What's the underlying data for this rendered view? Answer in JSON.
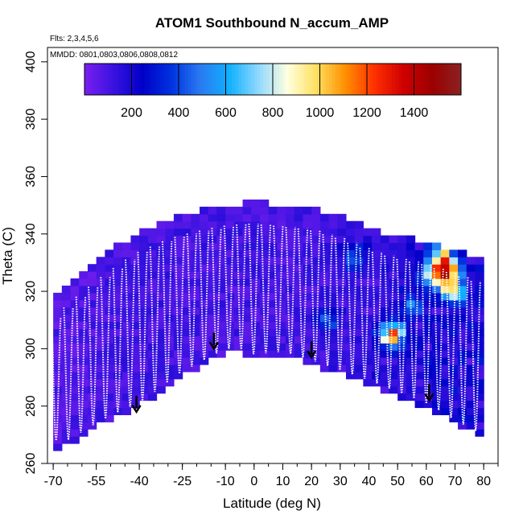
{
  "chart_data": {
    "type": "heatmap",
    "title": "ATOM1 Southbound N_accum_AMP",
    "xlabel": "Latitude (deg N)",
    "ylabel": "Theta (C)",
    "xlim": [
      -72,
      85
    ],
    "ylim": [
      260,
      405
    ],
    "x_tick_labels": [
      "-70",
      "-55",
      "-40",
      "-25",
      "-10",
      "0",
      "10",
      "20",
      "30",
      "40",
      "50",
      "60",
      "70",
      "80"
    ],
    "y_tick_labels": [
      "260",
      "280",
      "300",
      "320",
      "340",
      "360",
      "380",
      "400"
    ],
    "annotations": {
      "flights": "Flts: 2,3,4,5,6",
      "dates": "MMDD: 0801,0803,0806,0808,0812"
    },
    "colorbar": {
      "range": [
        0,
        1600
      ],
      "tick_labels": [
        "200",
        "400",
        "600",
        "800",
        "1000",
        "1200",
        "1400"
      ],
      "tick_values": [
        200,
        400,
        600,
        800,
        1000,
        1200,
        1400
      ],
      "colors": [
        "#7a1ff0",
        "#3a12e0",
        "#0000c8",
        "#0033e0",
        "#2a7af0",
        "#10b0ff",
        "#8fd8ff",
        "#ffffe0",
        "#ffe060",
        "#ff9000",
        "#ff3000",
        "#d00000",
        "#9c0000",
        "#8a2222"
      ]
    },
    "tropopause_lat": [
      -70,
      -65,
      -55,
      -45,
      -40,
      -25,
      -10,
      -5,
      0,
      10,
      20,
      40,
      55,
      62,
      70,
      78
    ],
    "tropopause_theta": [
      264,
      268,
      274,
      279,
      281,
      292,
      300,
      300,
      298,
      299,
      296,
      289,
      283,
      280,
      275,
      271
    ],
    "top_lat": [
      -70,
      -60,
      -50,
      -40,
      -28,
      -20,
      -10,
      0,
      10,
      20,
      30,
      40,
      50,
      60,
      70,
      78
    ],
    "top_theta": [
      316,
      325,
      333,
      340,
      345,
      347,
      349,
      350,
      349,
      348,
      345,
      341,
      338,
      336,
      333,
      330
    ],
    "arrow_lats": [
      -41,
      -14,
      20,
      61
    ],
    "arrow_thetas": [
      278,
      300,
      297,
      282
    ],
    "hotspots": [
      {
        "lat": 68,
        "theta": 327,
        "value": 1200
      },
      {
        "lat": 62,
        "theta": 326,
        "value": 900
      },
      {
        "lat": 66,
        "theta": 331,
        "value": 750
      },
      {
        "lat": 69,
        "theta": 320,
        "value": 950
      },
      {
        "lat": 48,
        "theta": 305,
        "value": 1300
      },
      {
        "lat": 65,
        "theta": 334,
        "value": 500
      },
      {
        "lat": 35,
        "theta": 332,
        "value": 450
      },
      {
        "lat": 25,
        "theta": 310,
        "value": 420
      },
      {
        "lat": 55,
        "theta": 315,
        "value": 430
      }
    ]
  }
}
